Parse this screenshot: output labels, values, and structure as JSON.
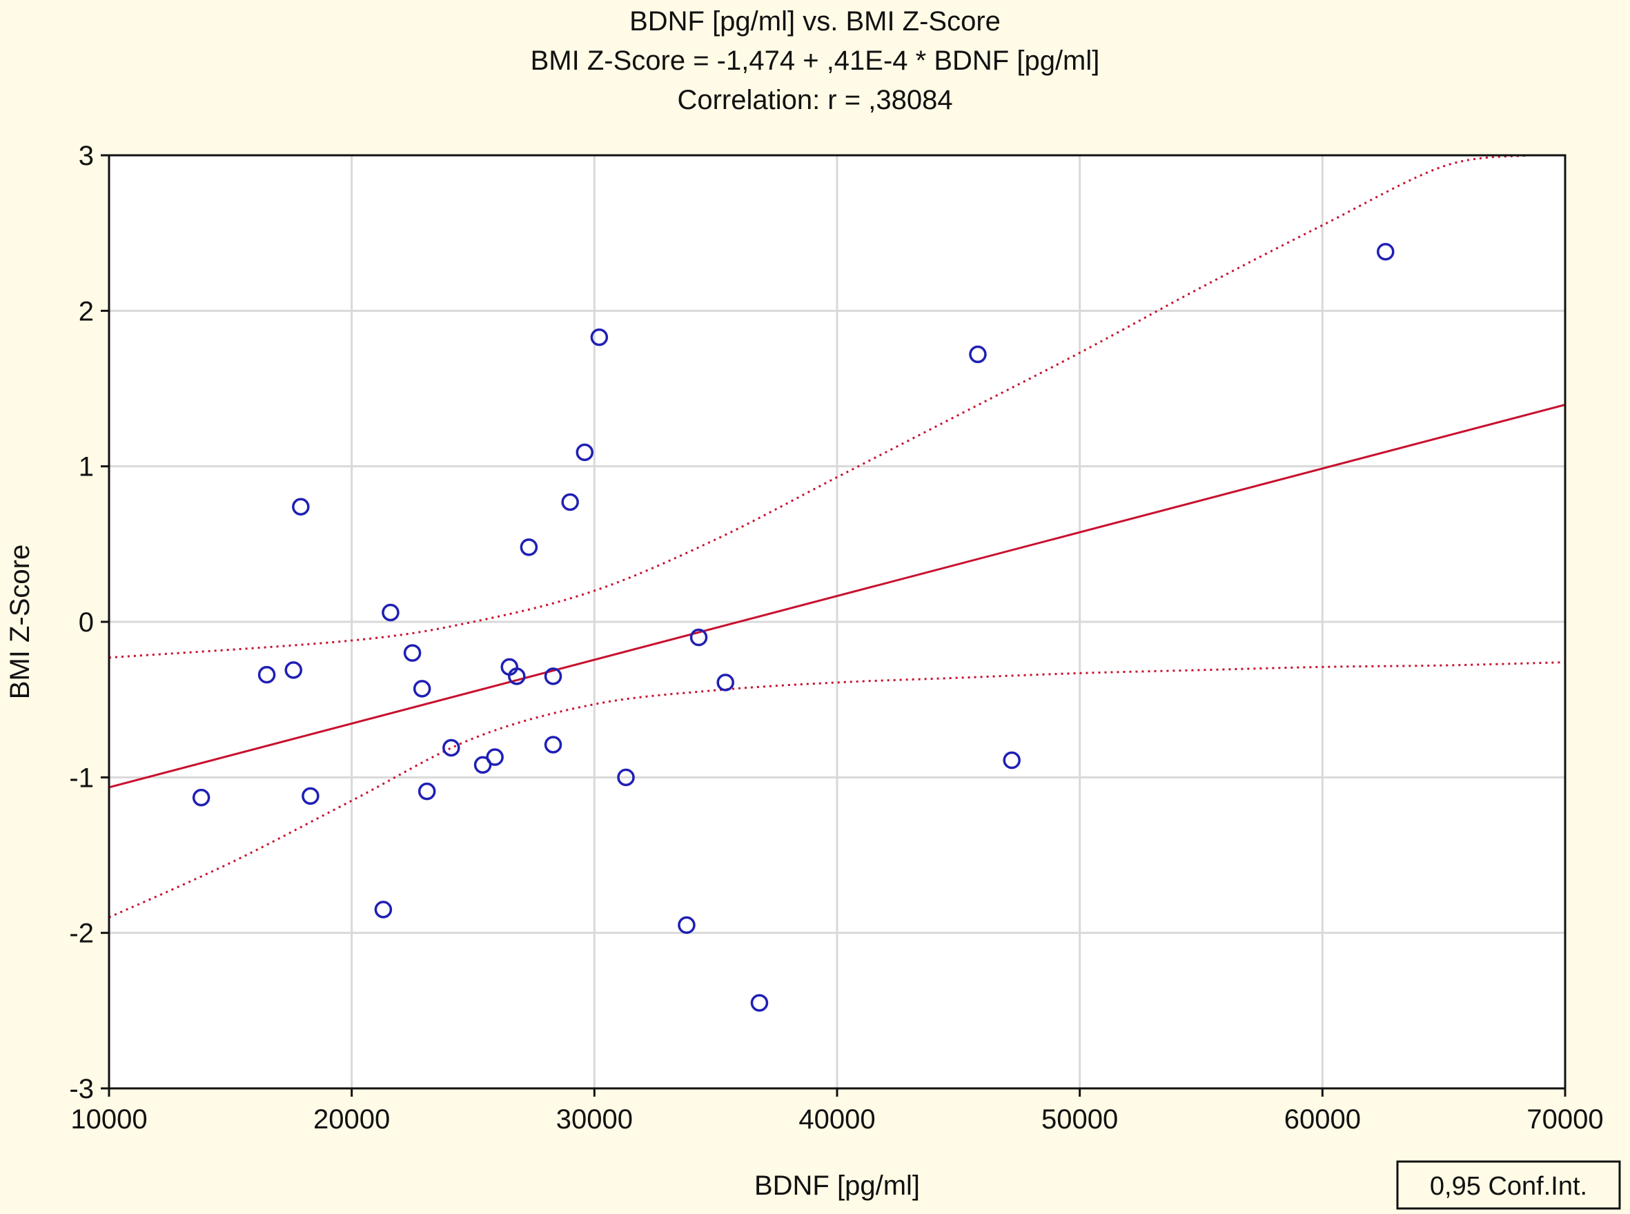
{
  "chart_data": {
    "type": "scatter",
    "title_lines": [
      "BDNF [pg/ml] vs. BMI Z-Score",
      "BMI Z-Score = -1,474 + ,41E-4 * BDNF [pg/ml]",
      "Correlation: r = ,38084"
    ],
    "xlabel": "BDNF [pg/ml]",
    "ylabel": "BMI Z-Score",
    "xlim": [
      10000,
      70000
    ],
    "ylim": [
      -3,
      3
    ],
    "x_ticks": [
      10000,
      20000,
      30000,
      40000,
      50000,
      60000,
      70000
    ],
    "x_tick_labels": [
      "10000",
      "20000",
      "30000",
      "40000",
      "50000",
      "60000",
      "70000"
    ],
    "y_ticks": [
      3,
      2,
      1,
      0,
      -1,
      -2,
      -3
    ],
    "y_tick_labels": [
      "3",
      "2",
      "1",
      "0",
      "-1",
      "-2",
      "-3"
    ],
    "grid": true,
    "legend": {
      "label": "0,95 Conf.Int.",
      "placement": "bottom-right"
    },
    "points": [
      {
        "x": 13800,
        "y": -1.13
      },
      {
        "x": 16500,
        "y": -0.34
      },
      {
        "x": 17600,
        "y": -0.31
      },
      {
        "x": 17900,
        "y": 0.74
      },
      {
        "x": 18300,
        "y": -1.12
      },
      {
        "x": 21300,
        "y": -1.85
      },
      {
        "x": 21600,
        "y": 0.06
      },
      {
        "x": 22500,
        "y": -0.2
      },
      {
        "x": 22900,
        "y": -0.43
      },
      {
        "x": 23100,
        "y": -1.09
      },
      {
        "x": 24100,
        "y": -0.81
      },
      {
        "x": 25400,
        "y": -0.92
      },
      {
        "x": 25900,
        "y": -0.87
      },
      {
        "x": 26500,
        "y": -0.29
      },
      {
        "x": 26800,
        "y": -0.35
      },
      {
        "x": 27300,
        "y": 0.48
      },
      {
        "x": 28300,
        "y": -0.35
      },
      {
        "x": 28300,
        "y": -0.79
      },
      {
        "x": 29000,
        "y": 0.77
      },
      {
        "x": 29600,
        "y": 1.09
      },
      {
        "x": 30200,
        "y": 1.83
      },
      {
        "x": 31300,
        "y": -1.0
      },
      {
        "x": 33800,
        "y": -1.95
      },
      {
        "x": 34300,
        "y": -0.1
      },
      {
        "x": 35400,
        "y": -0.39
      },
      {
        "x": 36800,
        "y": -2.45
      },
      {
        "x": 45800,
        "y": 1.72
      },
      {
        "x": 47200,
        "y": -0.89
      },
      {
        "x": 62600,
        "y": 2.38
      }
    ],
    "regression": {
      "intercept": -1.474,
      "slope": 4.1e-05
    },
    "ci_upper": [
      {
        "x": 10000,
        "y": -0.23
      },
      {
        "x": 20000,
        "y": -0.12
      },
      {
        "x": 25000,
        "y": 0.0
      },
      {
        "x": 30000,
        "y": 0.2
      },
      {
        "x": 35000,
        "y": 0.53
      },
      {
        "x": 40000,
        "y": 0.93
      },
      {
        "x": 45000,
        "y": 1.33
      },
      {
        "x": 50000,
        "y": 1.73
      },
      {
        "x": 55000,
        "y": 2.15
      },
      {
        "x": 60000,
        "y": 2.55
      },
      {
        "x": 65000,
        "y": 2.93
      },
      {
        "x": 68500,
        "y": 3.0
      }
    ],
    "ci_lower": [
      {
        "x": 10000,
        "y": -1.9
      },
      {
        "x": 15000,
        "y": -1.55
      },
      {
        "x": 20000,
        "y": -1.15
      },
      {
        "x": 25000,
        "y": -0.75
      },
      {
        "x": 30000,
        "y": -0.53
      },
      {
        "x": 35000,
        "y": -0.44
      },
      {
        "x": 40000,
        "y": -0.39
      },
      {
        "x": 45000,
        "y": -0.36
      },
      {
        "x": 50000,
        "y": -0.33
      },
      {
        "x": 55000,
        "y": -0.31
      },
      {
        "x": 60000,
        "y": -0.29
      },
      {
        "x": 65000,
        "y": -0.28
      },
      {
        "x": 70000,
        "y": -0.26
      }
    ],
    "colors": {
      "background": "#fffbe6",
      "plot_background": "#ffffff",
      "grid": "#d9d9d9",
      "points": "#1f1fb4",
      "regression": "#c8102e",
      "ci": "#c8102e",
      "axes": "#111111"
    }
  }
}
